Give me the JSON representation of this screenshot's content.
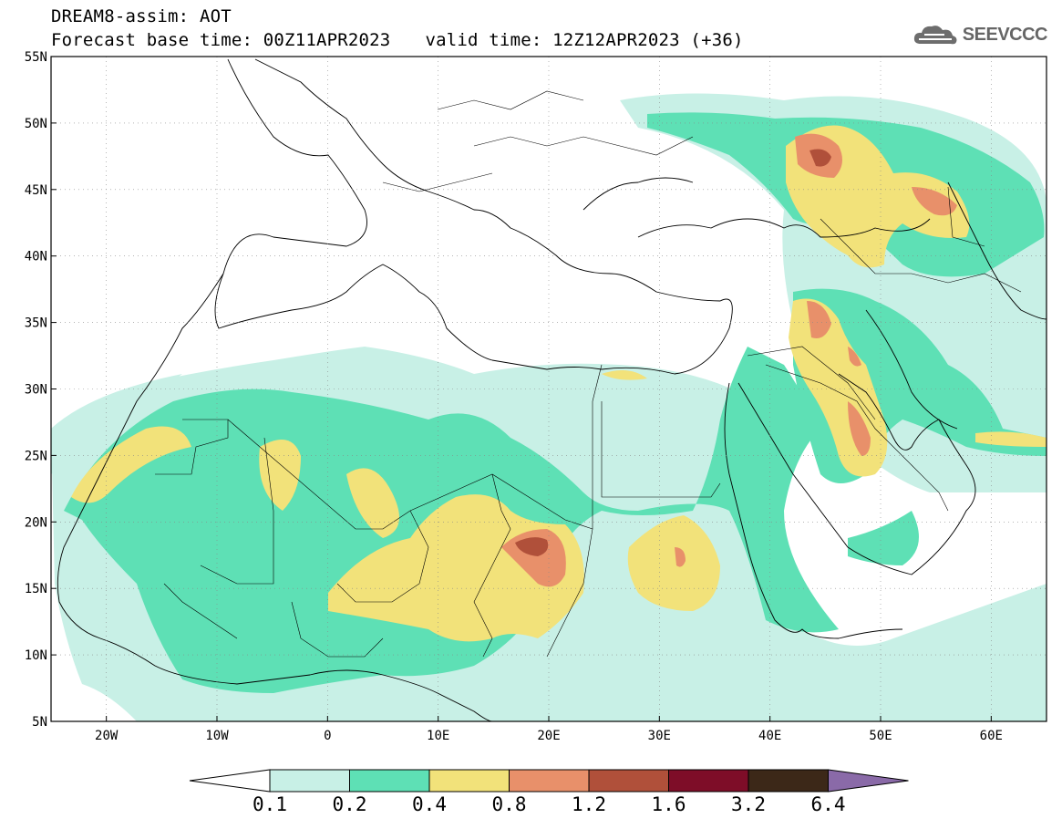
{
  "header": {
    "model_line": "DREAM8-assim: AOT",
    "base_time": "Forecast base time: 00Z11APR2023",
    "valid_time": "valid time: 12Z12APR2023 (+36)"
  },
  "logo": {
    "text": "SEEVCCC",
    "icon": "cloud-icon"
  },
  "map": {
    "lon_range": [
      -25,
      65
    ],
    "lat_range": [
      5,
      55
    ],
    "lat_labels": [
      "55N",
      "50N",
      "45N",
      "40N",
      "35N",
      "30N",
      "25N",
      "20N",
      "15N",
      "10N",
      "5N"
    ],
    "lon_labels": [
      "20W",
      "10W",
      "0",
      "10E",
      "20E",
      "30E",
      "40E",
      "50E",
      "60E"
    ]
  },
  "colorbar": {
    "labels": [
      "0.1",
      "0.2",
      "0.4",
      "0.8",
      "1.2",
      "1.6",
      "3.2",
      "6.4"
    ],
    "colors": [
      "#c8f0e6",
      "#5ee0b5",
      "#f2e27a",
      "#e8906a",
      "#b0503a",
      "#7e0d28",
      "#3c2818",
      "#8a6aa8"
    ]
  }
}
